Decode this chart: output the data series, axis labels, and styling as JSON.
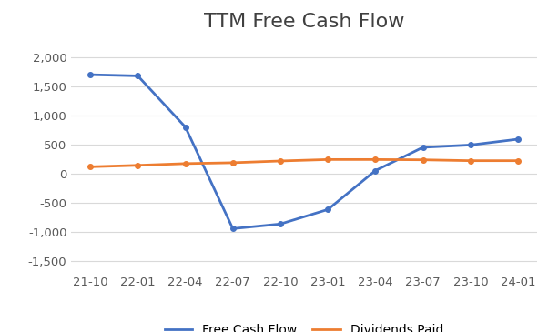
{
  "title": "TTM Free Cash Flow",
  "x_labels": [
    "21-10",
    "22-01",
    "22-04",
    "22-07",
    "22-10",
    "23-01",
    "23-04",
    "23-07",
    "23-10",
    "24-01"
  ],
  "free_cash_flow": [
    1700,
    1680,
    800,
    -950,
    -870,
    -620,
    50,
    450,
    490,
    590
  ],
  "dividends_paid": [
    115,
    140,
    170,
    185,
    215,
    240,
    240,
    235,
    220,
    220
  ],
  "fcf_color": "#4472C4",
  "div_color": "#ED7D31",
  "fcf_label": "Free Cash Flow",
  "div_label": "Dividends Paid",
  "ylim": [
    -1700,
    2300
  ],
  "yticks": [
    -1500,
    -1000,
    -500,
    0,
    500,
    1000,
    1500,
    2000
  ],
  "background_color": "#ffffff",
  "grid_color": "#d9d9d9",
  "title_fontsize": 16,
  "legend_fontsize": 10,
  "tick_fontsize": 9.5
}
